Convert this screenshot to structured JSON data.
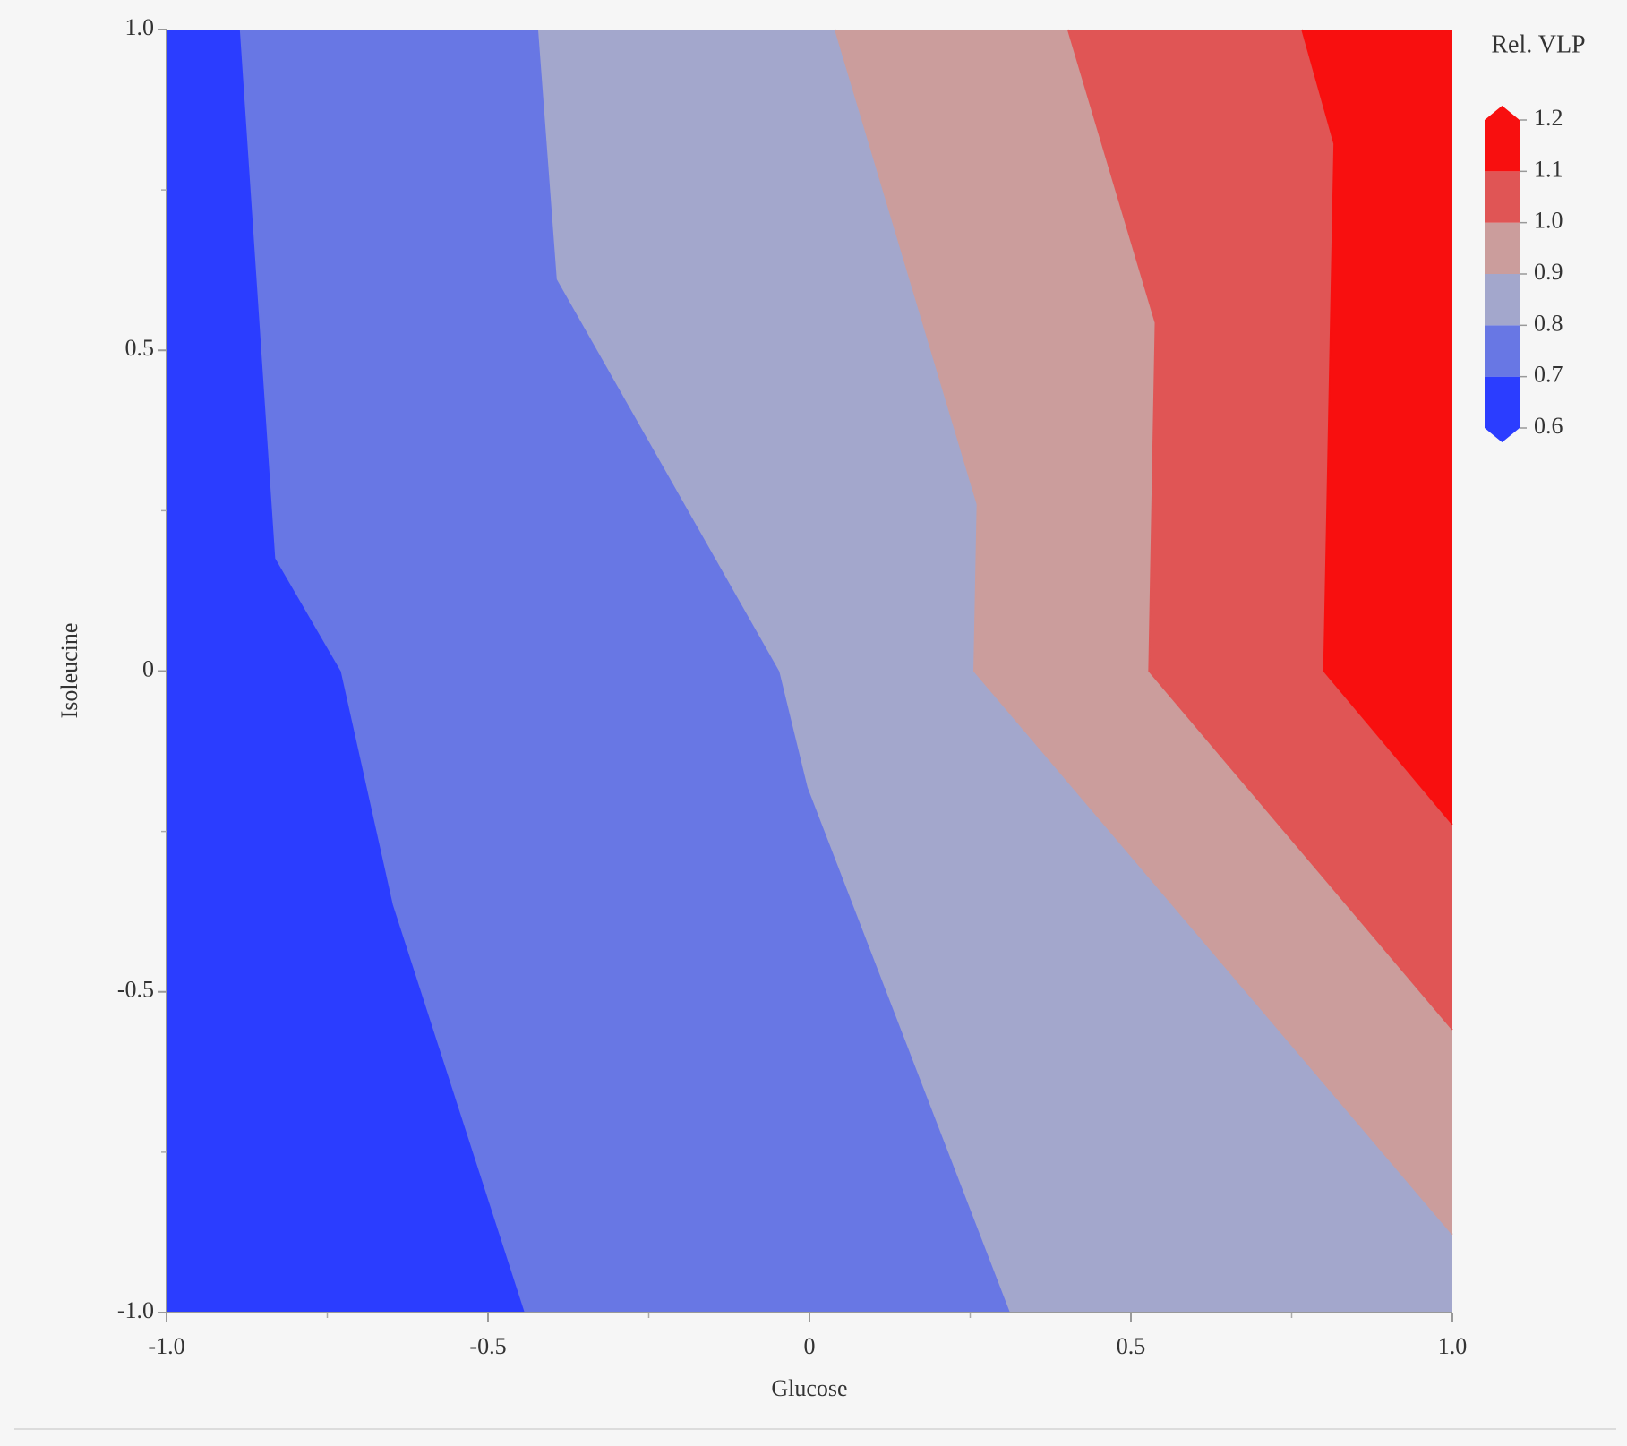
{
  "chart_data": {
    "type": "contour",
    "x_label": "Glucose",
    "y_label": "Isoleucine",
    "xlim": [
      -1,
      1
    ],
    "ylim": [
      -1,
      1
    ],
    "xticks": [
      {
        "value": -1,
        "label": "-1.0"
      },
      -0.5,
      0,
      0.5,
      {
        "value": 1,
        "label": "1.0"
      }
    ],
    "yticks": [
      {
        "value": -1,
        "label": "-1.0"
      },
      -0.5,
      0,
      0.5,
      {
        "value": 1,
        "label": "1.0"
      }
    ],
    "xminorticks": [
      -0.75,
      -0.25,
      0.25,
      0.75
    ],
    "yminorticks": [
      -0.75,
      -0.25,
      0.25,
      0.75
    ],
    "colorbar": {
      "title": "Rel. VLP",
      "ticks": [
        0.6,
        0.7,
        0.8,
        0.9,
        {
          "value": 1,
          "label": "1.0"
        },
        1.1,
        1.2
      ],
      "colors": [
        "#2b3dff",
        "#6877e4",
        "#a3a7cc",
        "#cb9d9c",
        "#e05555",
        "#f80f0f"
      ]
    },
    "contours": [
      {
        "level": 0.7,
        "x": [
          -0.885,
          -0.83,
          -0.728,
          -0.647,
          -0.442
        ],
        "y": [
          1,
          0.176,
          0,
          -0.364,
          -1
        ]
      },
      {
        "level": 0.8,
        "x": [
          -0.421,
          -0.392,
          -0.046,
          -0.002,
          0.313
        ],
        "y": [
          1,
          0.611,
          0,
          -0.181,
          -1
        ]
      },
      {
        "level": 0.9,
        "x": [
          0.04,
          0.261,
          0.256,
          1
        ],
        "y": [
          1,
          0.26,
          0,
          -0.878
        ]
      },
      {
        "level": 1.0,
        "x": [
          0.402,
          0.538,
          0.528,
          1
        ],
        "y": [
          1,
          0.543,
          0,
          -0.559
        ]
      },
      {
        "level": 1.1,
        "x": [
          0.766,
          0.816,
          0.8,
          1
        ],
        "y": [
          1,
          0.822,
          0,
          -0.239
        ]
      }
    ]
  }
}
